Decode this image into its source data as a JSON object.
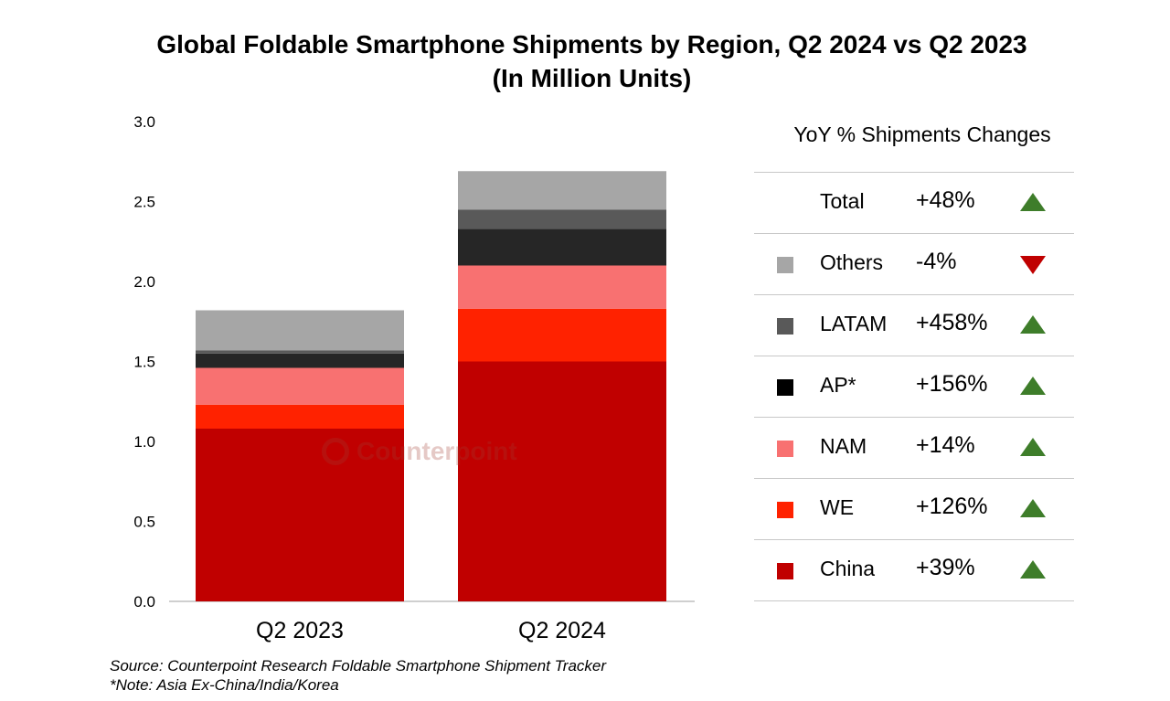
{
  "title_line1": "Global Foldable Smartphone Shipments by Region, Q2 2024 vs Q2 2023",
  "title_line2": "(In Million Units)",
  "watermark": "Counterpoint",
  "chart_data": {
    "type": "bar",
    "stacked": true,
    "categories": [
      "Q2 2023",
      "Q2 2024"
    ],
    "ylim": [
      0,
      3.0
    ],
    "yticks": [
      "0.0",
      "0.5",
      "1.0",
      "1.5",
      "2.0",
      "2.5",
      "3.0"
    ],
    "series": [
      {
        "name": "China",
        "color": "#c00000",
        "values": [
          1.08,
          1.5
        ]
      },
      {
        "name": "WE",
        "color": "#ff2200",
        "values": [
          0.15,
          0.33
        ]
      },
      {
        "name": "NAM",
        "color": "#f87171",
        "values": [
          0.23,
          0.27
        ]
      },
      {
        "name": "AP*",
        "color": "#262626",
        "values": [
          0.09,
          0.23
        ]
      },
      {
        "name": "LATAM",
        "color": "#595959",
        "values": [
          0.02,
          0.12
        ]
      },
      {
        "name": "Others",
        "color": "#a6a6a6",
        "values": [
          0.25,
          0.24
        ]
      }
    ]
  },
  "legend": {
    "header": "YoY % Shipments Changes",
    "rows": [
      {
        "label": "Total",
        "change": "+48%",
        "direction": "up",
        "color": ""
      },
      {
        "label": "Others",
        "change": "-4%",
        "direction": "down",
        "color": "#a6a6a6"
      },
      {
        "label": "LATAM",
        "change": "+458%",
        "direction": "up",
        "color": "#595959"
      },
      {
        "label": "AP*",
        "change": "+156%",
        "direction": "up",
        "color": "#000000"
      },
      {
        "label": "NAM",
        "change": "+14%",
        "direction": "up",
        "color": "#f87171"
      },
      {
        "label": "WE",
        "change": "+126%",
        "direction": "up",
        "color": "#ff2200"
      },
      {
        "label": "China",
        "change": "+39%",
        "direction": "up",
        "color": "#c00000"
      }
    ]
  },
  "footnotes": {
    "source": "Source: Counterpoint Research Foldable Smartphone Shipment Tracker",
    "note": "*Note: Asia Ex-China/India/Korea"
  }
}
